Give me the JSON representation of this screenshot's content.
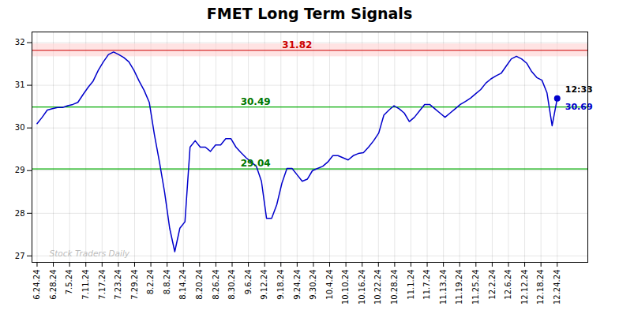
{
  "chart_data": {
    "type": "line",
    "title": "FMET Long Term Signals",
    "color": "#0000cc",
    "x": [
      0,
      1,
      2,
      3,
      4,
      5,
      6,
      7,
      8,
      9,
      10,
      11,
      12,
      13,
      14,
      15,
      16,
      17,
      18,
      19,
      20,
      21,
      22,
      23,
      24,
      25,
      26,
      27,
      28,
      29,
      30,
      31,
      32,
      33,
      34,
      35,
      36,
      37,
      38,
      39,
      40,
      41,
      42,
      43,
      44,
      45,
      46,
      47,
      48,
      49,
      50,
      51,
      52,
      53,
      54,
      55,
      56,
      57,
      58,
      59,
      60,
      61,
      62,
      63,
      64,
      65,
      66,
      67,
      68,
      69,
      70,
      71,
      72,
      73,
      74,
      75,
      76,
      77,
      78,
      79,
      80,
      81,
      82,
      83,
      84,
      85,
      86,
      87,
      88,
      89,
      90,
      91,
      92,
      93,
      94,
      95,
      96,
      97,
      98,
      99,
      100,
      101,
      102
    ],
    "values": [
      30.1,
      30.25,
      30.42,
      30.45,
      30.48,
      30.48,
      30.52,
      30.55,
      30.6,
      30.78,
      30.95,
      31.1,
      31.35,
      31.55,
      31.72,
      31.78,
      31.72,
      31.65,
      31.55,
      31.35,
      31.1,
      30.88,
      30.6,
      29.85,
      29.2,
      28.5,
      27.65,
      27.1,
      27.65,
      27.8,
      29.55,
      29.7,
      29.55,
      29.55,
      29.45,
      29.6,
      29.6,
      29.75,
      29.75,
      29.55,
      29.42,
      29.3,
      29.2,
      29.1,
      28.75,
      27.88,
      27.88,
      28.2,
      28.7,
      29.05,
      29.05,
      28.9,
      28.75,
      28.8,
      29.0,
      29.05,
      29.1,
      29.2,
      29.35,
      29.35,
      29.3,
      29.25,
      29.35,
      29.4,
      29.42,
      29.55,
      29.7,
      29.88,
      30.3,
      30.42,
      30.52,
      30.45,
      30.35,
      30.15,
      30.25,
      30.4,
      30.55,
      30.55,
      30.45,
      30.35,
      30.25,
      30.35,
      30.45,
      30.55,
      30.62,
      30.7,
      30.8,
      30.9,
      31.05,
      31.15,
      31.22,
      31.28,
      31.45,
      31.62,
      31.68,
      31.62,
      31.52,
      31.32,
      31.18,
      31.12,
      30.82,
      30.05,
      30.69
    ],
    "xlim": [
      -1,
      108
    ],
    "xticks": [
      {
        "value": 0,
        "label": "6.24.24"
      },
      {
        "value": 3.1875,
        "label": "6.28.24"
      },
      {
        "value": 6.375,
        "label": "7.5.24"
      },
      {
        "value": 9.5625,
        "label": "7.11.24"
      },
      {
        "value": 12.75,
        "label": "7.17.24"
      },
      {
        "value": 15.9375,
        "label": "7.23.24"
      },
      {
        "value": 19.125,
        "label": "7.29.24"
      },
      {
        "value": 22.3125,
        "label": "8.2.24"
      },
      {
        "value": 25.5,
        "label": "8.8.24"
      },
      {
        "value": 28.6875,
        "label": "8.14.24"
      },
      {
        "value": 31.875,
        "label": "8.20.24"
      },
      {
        "value": 35.0625,
        "label": "8.26.24"
      },
      {
        "value": 38.25,
        "label": "8.30.24"
      },
      {
        "value": 41.4375,
        "label": "9.6.24"
      },
      {
        "value": 44.625,
        "label": "9.12.24"
      },
      {
        "value": 47.8125,
        "label": "9.18.24"
      },
      {
        "value": 51,
        "label": "9.24.24"
      },
      {
        "value": 54.1875,
        "label": "9.30.24"
      },
      {
        "value": 57.375,
        "label": "10.4.24"
      },
      {
        "value": 60.5625,
        "label": "10.10.24"
      },
      {
        "value": 63.75,
        "label": "10.16.24"
      },
      {
        "value": 66.9375,
        "label": "10.22.24"
      },
      {
        "value": 70.125,
        "label": "10.28.24"
      },
      {
        "value": 73.3125,
        "label": "11.1.24"
      },
      {
        "value": 76.5,
        "label": "11.7.24"
      },
      {
        "value": 79.6875,
        "label": "11.13.24"
      },
      {
        "value": 82.875,
        "label": "11.19.24"
      },
      {
        "value": 86.0625,
        "label": "11.25.24"
      },
      {
        "value": 89.25,
        "label": "12.2.24"
      },
      {
        "value": 92.4375,
        "label": "12.6.24"
      },
      {
        "value": 95.625,
        "label": "12.12.24"
      },
      {
        "value": 98.8125,
        "label": "12.18.24"
      },
      {
        "value": 102,
        "label": "12.24.24"
      }
    ],
    "ylim": [
      26.85,
      32.25
    ],
    "yticks": [
      27,
      28,
      29,
      30,
      31,
      32
    ],
    "grid": true,
    "reference_lines": [
      {
        "y": 31.82,
        "label": "31.82",
        "color": "#cc0000",
        "label_color": "#cc0000",
        "band": [
          31.67,
          31.97
        ],
        "band_color": "#ffcccc"
      },
      {
        "y": 30.49,
        "label": "30.49",
        "color": "#00aa00",
        "label_color": "#007700"
      },
      {
        "y": 29.04,
        "label": "29.04",
        "color": "#00aa00",
        "label_color": "#007700"
      }
    ],
    "annotations": [
      {
        "text": "12:33",
        "color": "#000000"
      },
      {
        "text": "30.69",
        "color": "#0000cc"
      }
    ],
    "watermark": "Stock Traders Daily"
  }
}
